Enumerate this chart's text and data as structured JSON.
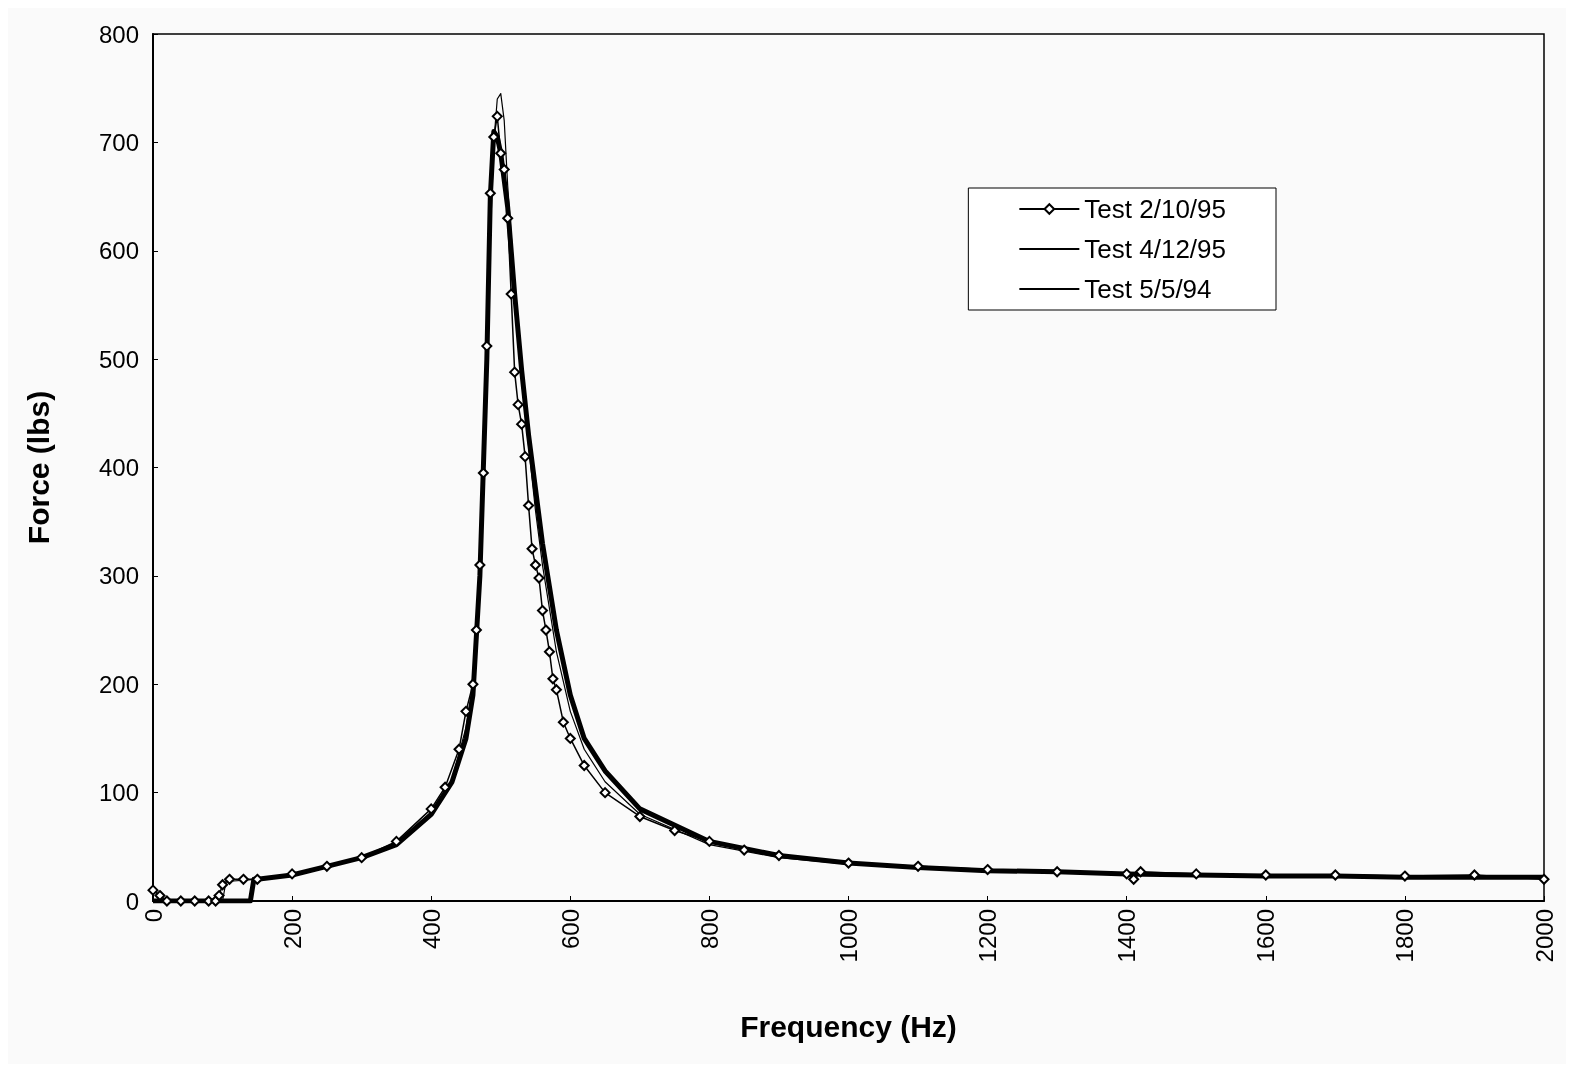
{
  "chart_data": {
    "type": "line",
    "xlabel": "Frequency (Hz)",
    "ylabel": "Force (lbs)",
    "xlim": [
      0,
      2000
    ],
    "xticks": [
      0,
      200,
      400,
      600,
      800,
      1000,
      1200,
      1400,
      1600,
      1800,
      2000
    ],
    "ylim": [
      0,
      800
    ],
    "yticks": [
      0,
      100,
      200,
      300,
      400,
      500,
      600,
      700,
      800
    ],
    "grid": false,
    "legend": "top right",
    "series": [
      {
        "name": "Test 2/10/95",
        "color": "#000000",
        "marker": "diamond",
        "x": [
          0,
          10,
          20,
          40,
          60,
          80,
          90,
          95,
          100,
          110,
          130,
          150,
          200,
          250,
          300,
          350,
          400,
          420,
          440,
          450,
          460,
          465,
          470,
          475,
          480,
          485,
          490,
          495,
          500,
          505,
          510,
          515,
          520,
          525,
          530,
          535,
          540,
          545,
          550,
          555,
          560,
          565,
          570,
          575,
          580,
          590,
          600,
          620,
          650,
          700,
          750,
          800,
          850,
          900,
          1000,
          1100,
          1200,
          1300,
          1400,
          1410,
          1420,
          1500,
          1600,
          1700,
          1800,
          1900,
          2000
        ],
        "values": [
          10,
          5,
          0,
          0,
          0,
          0,
          0,
          5,
          15,
          20,
          20,
          20,
          25,
          32,
          40,
          55,
          85,
          105,
          140,
          175,
          200,
          250,
          310,
          395,
          512,
          653,
          705,
          724,
          690,
          675,
          630,
          560,
          488,
          458,
          440,
          410,
          365,
          325,
          310,
          298,
          268,
          250,
          230,
          205,
          195,
          165,
          150,
          125,
          100,
          78,
          65,
          55,
          47,
          42,
          35,
          32,
          29,
          27,
          25,
          20,
          27,
          25,
          24,
          24,
          23,
          24,
          20
        ]
      },
      {
        "name": "Test 4/12/95",
        "color": "#000000",
        "marker": "none",
        "x": [
          0,
          50,
          100,
          140,
          145,
          150,
          200,
          250,
          300,
          350,
          400,
          430,
          450,
          460,
          470,
          480,
          485,
          490,
          495,
          500,
          510,
          520,
          530,
          540,
          550,
          560,
          570,
          580,
          600,
          620,
          650,
          700,
          800,
          900,
          1000,
          1100,
          1200,
          1300,
          1400,
          1500,
          1600,
          1700,
          1800,
          1900,
          2000
        ],
        "values": [
          0,
          0,
          0,
          0,
          20,
          20,
          24,
          32,
          40,
          52,
          80,
          110,
          150,
          190,
          300,
          500,
          650,
          710,
          705,
          690,
          640,
          560,
          490,
          430,
          380,
          330,
          290,
          250,
          190,
          150,
          120,
          85,
          55,
          42,
          35,
          31,
          28,
          27,
          25,
          24,
          23,
          23,
          22,
          22,
          22
        ]
      },
      {
        "name": "Test 5/5/94",
        "color": "#000000",
        "marker": "none",
        "x": [
          0,
          50,
          90,
          100,
          105,
          150,
          200,
          250,
          300,
          350,
          400,
          430,
          450,
          460,
          470,
          480,
          490,
          495,
          500,
          505,
          510,
          520,
          530,
          540,
          550,
          560,
          570,
          580,
          600,
          620,
          650,
          700,
          800,
          900,
          1000,
          1100,
          1200,
          1300,
          1400,
          1500,
          1600,
          1700,
          1800,
          1900,
          2000
        ],
        "values": [
          0,
          0,
          0,
          0,
          18,
          20,
          25,
          32,
          40,
          53,
          82,
          112,
          160,
          200,
          310,
          520,
          700,
          740,
          745,
          720,
          660,
          570,
          480,
          420,
          360,
          310,
          270,
          230,
          175,
          140,
          110,
          80,
          52,
          40,
          34,
          30,
          28,
          26,
          24,
          24,
          23,
          23,
          22,
          22,
          22
        ]
      }
    ]
  }
}
